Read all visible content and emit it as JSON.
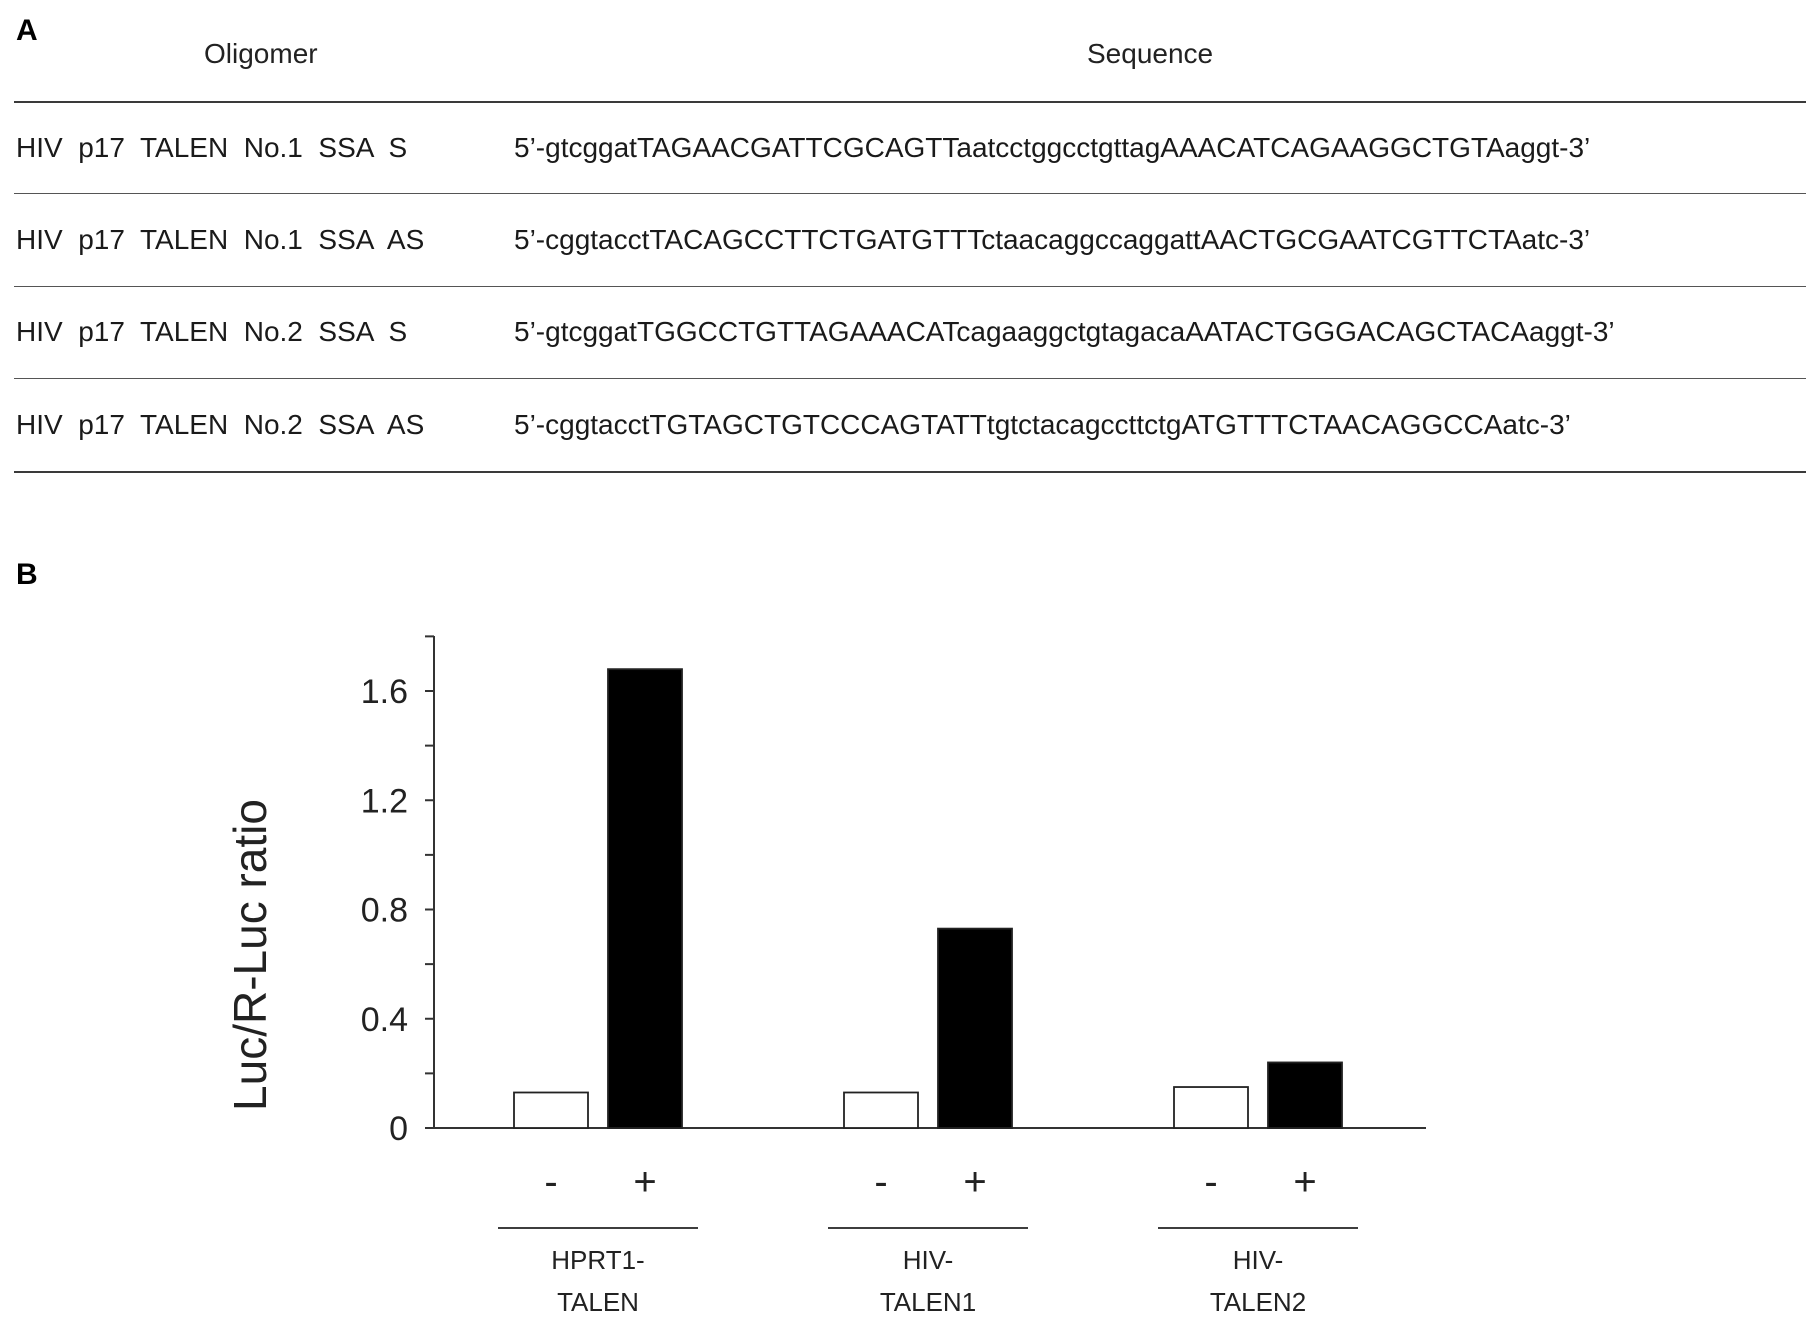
{
  "panel_a": {
    "label": "A",
    "headers": {
      "oligomer": "Oligomer",
      "sequence": "Sequence"
    },
    "rows": [
      {
        "oligomer": "HIV  p17  TALEN  No.1  SSA  S",
        "sequence": "5’-gtcggatTAGAACGATTCGCAGTTaatcctggcctgttagAAACATCAGAAGGCTGTAaggt-3’"
      },
      {
        "oligomer": "HIV  p17  TALEN  No.1  SSA  AS",
        "sequence": "5’-cggtacctTACAGCCTTCTGATGTTTctaacaggccaggattAACTGCGAATCGTTCTAatc-3’"
      },
      {
        "oligomer": "HIV  p17  TALEN  No.2  SSA  S",
        "sequence": "5’-gtcggatTGGCCTGTTAGAAACATcagaaggctgtagacaAATACTGGGACAGCTACAaggt-3’"
      },
      {
        "oligomer": "HIV  p17  TALEN  No.2  SSA  AS",
        "sequence": "5’-cggtacctTGTAGCTGTCCCAGTATTtgtctacagccttctgATGTTTCTAACAGGCCAatc-3’"
      }
    ]
  },
  "panel_b": {
    "label": "B"
  },
  "chart_data": {
    "type": "bar",
    "ylabel": "Luc/R-Luc ratio",
    "ylim": [
      0,
      1.8
    ],
    "yticks": [
      0,
      0.4,
      0.8,
      1.2,
      1.6
    ],
    "ytick_labels": [
      "0",
      "0.4",
      "0.8",
      "1.2",
      "1.6"
    ],
    "groups": [
      "HPRT1-\nTALEN",
      "HIV-\nTALEN1",
      "HIV-\nTALEN2"
    ],
    "conditions": [
      "-",
      "+"
    ],
    "series": [
      {
        "values": [
          0.13,
          0.13,
          0.15
        ],
        "color": "#ffffff"
      },
      {
        "values": [
          1.68,
          0.73,
          0.24
        ],
        "color": "#000000"
      }
    ]
  }
}
